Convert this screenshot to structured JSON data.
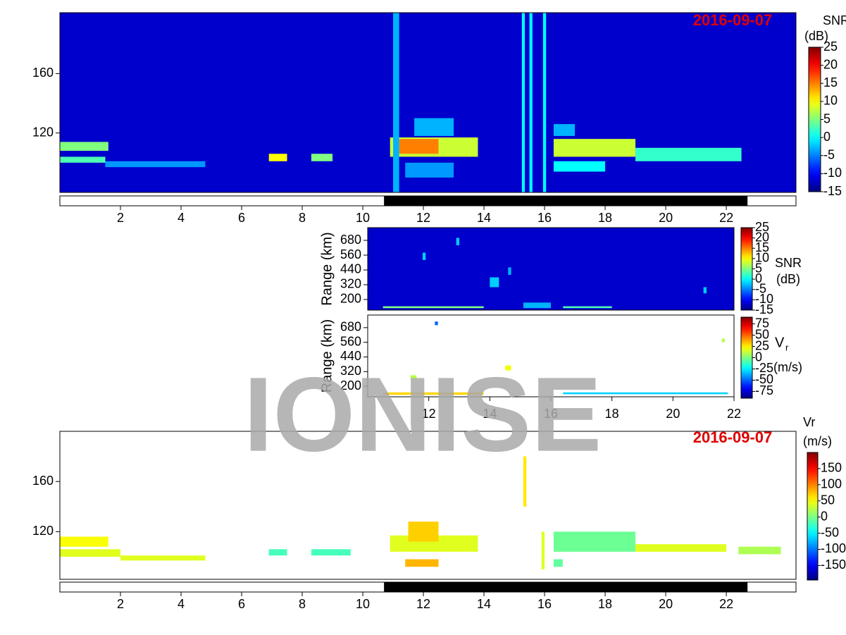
{
  "watermark": "IONISE",
  "chart_data": [
    {
      "type": "heatmap",
      "date_label": "2016-09-07",
      "colorbar_label": [
        "SNR",
        "(dB)"
      ],
      "xlim": [
        0,
        24.3
      ],
      "xticks": [
        2,
        4,
        6,
        8,
        10,
        12,
        14,
        16,
        18,
        20,
        22
      ],
      "ylim": [
        80,
        201
      ],
      "yticks": [
        120,
        160
      ],
      "clim": [
        -15,
        25
      ],
      "cticks": [
        25,
        20,
        15,
        10,
        5,
        0,
        -5,
        -10,
        -15
      ],
      "night": [
        [
          10.7,
          22.7
        ]
      ],
      "cells": [
        {
          "x": [
            0,
            24.3
          ],
          "y": [
            80,
            201
          ],
          "v": -12
        },
        {
          "x": [
            0,
            1.6
          ],
          "y": [
            108,
            114
          ],
          "v": 5
        },
        {
          "x": [
            0,
            1.5
          ],
          "y": [
            100,
            104
          ],
          "v": 3
        },
        {
          "x": [
            1.5,
            4.8
          ],
          "y": [
            97,
            101
          ],
          "v": -4
        },
        {
          "x": [
            6.9,
            7.5
          ],
          "y": [
            101,
            106
          ],
          "v": 10
        },
        {
          "x": [
            8.3,
            9
          ],
          "y": [
            101,
            106
          ],
          "v": 5
        },
        {
          "x": [
            10.9,
            13.8
          ],
          "y": [
            104,
            117
          ],
          "v": 8
        },
        {
          "x": [
            11.2,
            12.5
          ],
          "y": [
            106,
            116
          ],
          "v": 15
        },
        {
          "x": [
            11.7,
            13
          ],
          "y": [
            118,
            130
          ],
          "v": -3
        },
        {
          "x": [
            11.4,
            13
          ],
          "y": [
            90,
            100
          ],
          "v": -4
        },
        {
          "x": [
            11,
            11.2
          ],
          "y": [
            80,
            201
          ],
          "v": -3
        },
        {
          "x": [
            15.25,
            15.35
          ],
          "y": [
            80,
            201
          ],
          "v": 0
        },
        {
          "x": [
            15.5,
            15.6
          ],
          "y": [
            80,
            201
          ],
          "v": 0
        },
        {
          "x": [
            15.95,
            16.05
          ],
          "y": [
            80,
            201
          ],
          "v": 0
        },
        {
          "x": [
            16.3,
            19
          ],
          "y": [
            104,
            116
          ],
          "v": 8
        },
        {
          "x": [
            16.3,
            18
          ],
          "y": [
            94,
            101
          ],
          "v": 0
        },
        {
          "x": [
            16.3,
            17
          ],
          "y": [
            118,
            126
          ],
          "v": -3
        },
        {
          "x": [
            19,
            22.5
          ],
          "y": [
            101,
            110
          ],
          "v": 2
        }
      ]
    },
    {
      "type": "heatmap",
      "ylabel": "Range (km)",
      "colorbar_label": [
        "SNR",
        "(dB)"
      ],
      "xlim": [
        10,
        22
      ],
      "ylim": [
        114,
        783
      ],
      "yticks": [
        200,
        320,
        440,
        560,
        680
      ],
      "clim": [
        -15,
        25
      ],
      "cticks": [
        25,
        20,
        15,
        10,
        5,
        0,
        -5,
        -10,
        -15
      ],
      "cells": [
        {
          "x": [
            10,
            22
          ],
          "y": [
            114,
            783
          ],
          "v": -12
        },
        {
          "x": [
            10.5,
            13.8
          ],
          "y": [
            130,
            145
          ],
          "v": 5
        },
        {
          "x": [
            16.4,
            18
          ],
          "y": [
            130,
            145
          ],
          "v": 3
        },
        {
          "x": [
            15.1,
            16
          ],
          "y": [
            130,
            175
          ],
          "v": -3
        },
        {
          "x": [
            11.8,
            11.9
          ],
          "y": [
            520,
            580
          ],
          "v": -2
        },
        {
          "x": [
            12.9,
            13
          ],
          "y": [
            640,
            700
          ],
          "v": -2
        },
        {
          "x": [
            14,
            14.3
          ],
          "y": [
            300,
            380
          ],
          "v": -2
        },
        {
          "x": [
            14.6,
            14.7
          ],
          "y": [
            400,
            460
          ],
          "v": -3
        },
        {
          "x": [
            21,
            21.1
          ],
          "y": [
            250,
            300
          ],
          "v": -2
        }
      ]
    },
    {
      "type": "heatmap",
      "ylabel": "Range (km)",
      "colorbar_label": [
        "V",
        "r",
        "(m/s)"
      ],
      "xlim": [
        10,
        22
      ],
      "xticks": [
        12,
        14,
        16,
        18,
        20,
        22
      ],
      "ylim": [
        114,
        783
      ],
      "yticks": [
        200,
        320,
        440,
        560,
        680
      ],
      "clim": [
        -90,
        90
      ],
      "cticks": [
        75,
        50,
        25,
        0,
        -25,
        -50,
        -75
      ],
      "cells": [
        {
          "x": [
            10.5,
            13.8
          ],
          "y": [
            130,
            150
          ],
          "v": 30
        },
        {
          "x": [
            16.4,
            21.8
          ],
          "y": [
            135,
            150
          ],
          "v": -30
        },
        {
          "x": [
            12.2,
            12.3
          ],
          "y": [
            700,
            730
          ],
          "v": -50
        },
        {
          "x": [
            14.5,
            14.7
          ],
          "y": [
            330,
            370
          ],
          "v": 20
        },
        {
          "x": [
            11.4,
            11.6
          ],
          "y": [
            260,
            290
          ],
          "v": 10
        },
        {
          "x": [
            21.6,
            21.7
          ],
          "y": [
            560,
            590
          ],
          "v": 10
        }
      ]
    },
    {
      "type": "heatmap",
      "date_label": "2016-09-07",
      "colorbar_label": [
        "Vr",
        "(m/s)"
      ],
      "xlim": [
        0,
        24.3
      ],
      "xticks": [
        2,
        4,
        6,
        8,
        10,
        12,
        14,
        16,
        18,
        20,
        22
      ],
      "ylim": [
        82,
        200
      ],
      "yticks": [
        120,
        160
      ],
      "clim": [
        -195,
        200
      ],
      "cticks": [
        150,
        100,
        50,
        0,
        -50,
        -100,
        -150
      ],
      "night": [
        [
          10.7,
          22.7
        ]
      ],
      "cells": [
        {
          "x": [
            0,
            1.6
          ],
          "y": [
            108,
            116
          ],
          "v": 50
        },
        {
          "x": [
            0,
            2
          ],
          "y": [
            100,
            106
          ],
          "v": 40
        },
        {
          "x": [
            2,
            4.8
          ],
          "y": [
            97,
            101
          ],
          "v": 40
        },
        {
          "x": [
            6.9,
            7.5
          ],
          "y": [
            101,
            106
          ],
          "v": -20
        },
        {
          "x": [
            8.3,
            9.6
          ],
          "y": [
            101,
            106
          ],
          "v": -20
        },
        {
          "x": [
            10.9,
            13.8
          ],
          "y": [
            104,
            117
          ],
          "v": 40
        },
        {
          "x": [
            11.5,
            12.5
          ],
          "y": [
            112,
            128
          ],
          "v": 70
        },
        {
          "x": [
            11.4,
            12.5
          ],
          "y": [
            92,
            98
          ],
          "v": 80
        },
        {
          "x": [
            15.3,
            15.4
          ],
          "y": [
            140,
            180
          ],
          "v": 60
        },
        {
          "x": [
            15.9,
            16
          ],
          "y": [
            90,
            120
          ],
          "v": 40
        },
        {
          "x": [
            16.3,
            19
          ],
          "y": [
            104,
            120
          ],
          "v": -5
        },
        {
          "x": [
            16.3,
            16.6
          ],
          "y": [
            92,
            98
          ],
          "v": -10
        },
        {
          "x": [
            19,
            22
          ],
          "y": [
            104,
            110
          ],
          "v": 40
        },
        {
          "x": [
            22.4,
            23.8
          ],
          "y": [
            102,
            108
          ],
          "v": 20
        }
      ]
    }
  ]
}
